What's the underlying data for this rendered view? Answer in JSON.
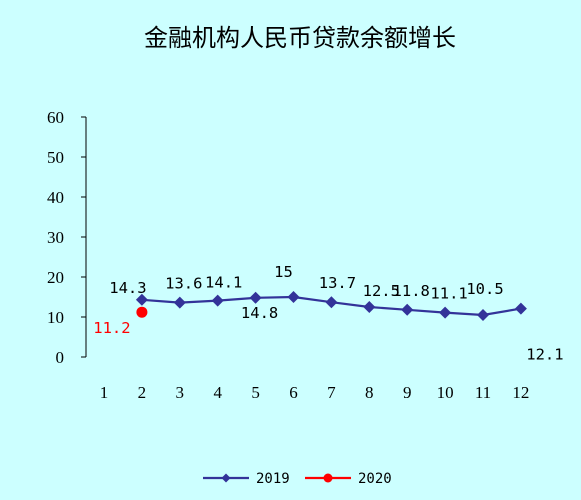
{
  "chart_data": {
    "type": "line",
    "title": "金融机构人民币贷款余额增长",
    "xlabel": "",
    "ylabel": "",
    "categories": [
      "1",
      "2",
      "3",
      "4",
      "5",
      "6",
      "7",
      "8",
      "9",
      "10",
      "11",
      "12"
    ],
    "ylim": [
      0,
      60
    ],
    "yticks": [
      "0",
      "10",
      "20",
      "30",
      "40",
      "50",
      "60"
    ],
    "grid": false,
    "legend_position": "bottom",
    "series": [
      {
        "name": "2019",
        "color": "#333399",
        "marker": "diamond",
        "x": [
          "2",
          "3",
          "4",
          "5",
          "6",
          "7",
          "8",
          "9",
          "10",
          "11",
          "12"
        ],
        "values": [
          14.3,
          13.6,
          14.1,
          14.8,
          15,
          13.7,
          12.5,
          11.8,
          11.1,
          10.5,
          12.1
        ],
        "labels": [
          "14.3",
          "13.6",
          "14.1",
          "14.8",
          "15",
          "13.7",
          "12.5",
          "11.8",
          "11.1",
          "10.5",
          "12.1"
        ],
        "label_color": "#000000"
      },
      {
        "name": "2020",
        "color": "#ff0000",
        "marker": "circle",
        "x": [
          "2"
        ],
        "values": [
          11.2
        ],
        "labels": [
          "11.2"
        ],
        "label_color": "#ff0000"
      }
    ]
  }
}
